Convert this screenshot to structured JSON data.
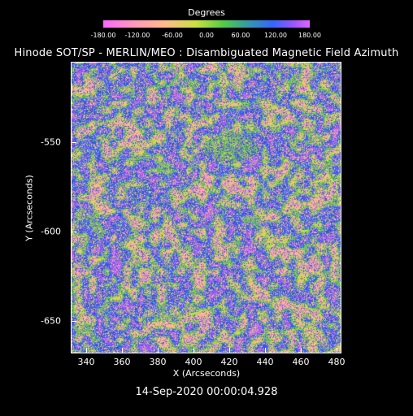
{
  "colorbar": {
    "title": "Degrees",
    "ticks": [
      "-180.00",
      "-120.00",
      "-60.00",
      "0.00",
      "60.00",
      "120.00",
      "180.00"
    ],
    "colors": [
      "#ff66ff",
      "#ff99bb",
      "#ffbb88",
      "#c8e040",
      "#55cc44",
      "#3399aa",
      "#3366ff",
      "#9955ff",
      "#dd66ff"
    ]
  },
  "title": "Hinode SOT/SP - MERLIN/MEO : Disambiguated Magnetic Field Azimuth",
  "axes": {
    "xlabel": "X (Arcseconds)",
    "ylabel": "Y (Arcseconds)",
    "xticks": [
      "340",
      "360",
      "380",
      "400",
      "420",
      "440",
      "460",
      "480"
    ],
    "yticks": [
      "-550",
      "-600",
      "-650"
    ]
  },
  "timestamp": "14-Sep-2020 00:00:04.928",
  "image": {
    "description_colors": [
      "#ff99bb",
      "#ffbb88",
      "#c8e040",
      "#55cc44",
      "#3366ff",
      "#3355dd",
      "#9955ff",
      "#dd66ff"
    ]
  }
}
